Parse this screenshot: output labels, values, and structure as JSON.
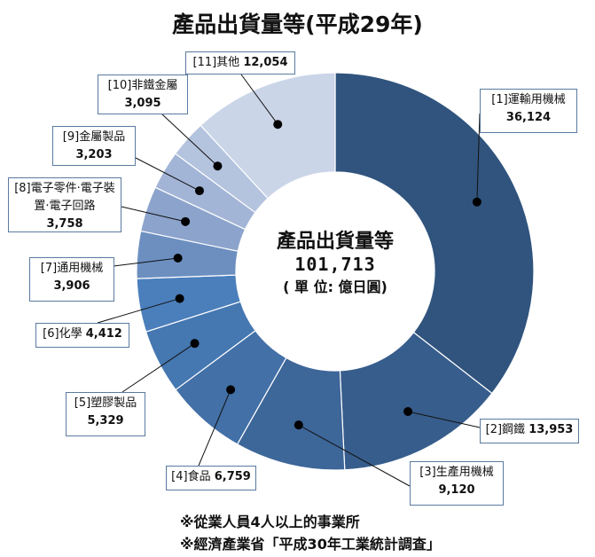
{
  "chart_data": {
    "type": "pie",
    "title": "產品出貨量等(平成29年)",
    "center_label": {
      "title": "產品出貨量等",
      "total": "101,713",
      "unit": "( 單 位: 億日圓)"
    },
    "slices": [
      {
        "label": "[1]運輸用機械",
        "value": 36124,
        "display": "36,124",
        "color": "#30547d"
      },
      {
        "label": "[2]鋼鐵",
        "value": 13953,
        "display": "13,953",
        "color": "#375d8c"
      },
      {
        "label": "[3]生產用機械",
        "value": 9120,
        "display": "9,120",
        "color": "#3d6699"
      },
      {
        "label": "[4]食品",
        "value": 6759,
        "display": "6,759",
        "color": "#4270a7"
      },
      {
        "label": "[5]塑膠製品",
        "value": 5329,
        "display": "5,329",
        "color": "#4577b1"
      },
      {
        "label": "[6]化學",
        "value": 4412,
        "display": "4,412",
        "color": "#4b7fbc"
      },
      {
        "label": "[7]通用機械",
        "value": 3906,
        "display": "3,906",
        "color": "#6c8fc0"
      },
      {
        "label": "[8]電子零件‧電子裝置‧電子回路",
        "value": 3758,
        "display": "3,758",
        "color": "#8ca4cc"
      },
      {
        "label": "[9]金屬製品",
        "value": 3203,
        "display": "3,203",
        "color": "#a3b5d6"
      },
      {
        "label": "[10]非鐵金屬",
        "value": 3095,
        "display": "3,095",
        "color": "#b4c3de"
      },
      {
        "label": "[11]其他",
        "value": 12054,
        "display": "12,054",
        "color": "#cbd5e8"
      }
    ],
    "legend": "none"
  },
  "notes": [
    "※從業人員4人以上的事業所",
    "※經濟產業省「平成30年工業統計調査」"
  ]
}
